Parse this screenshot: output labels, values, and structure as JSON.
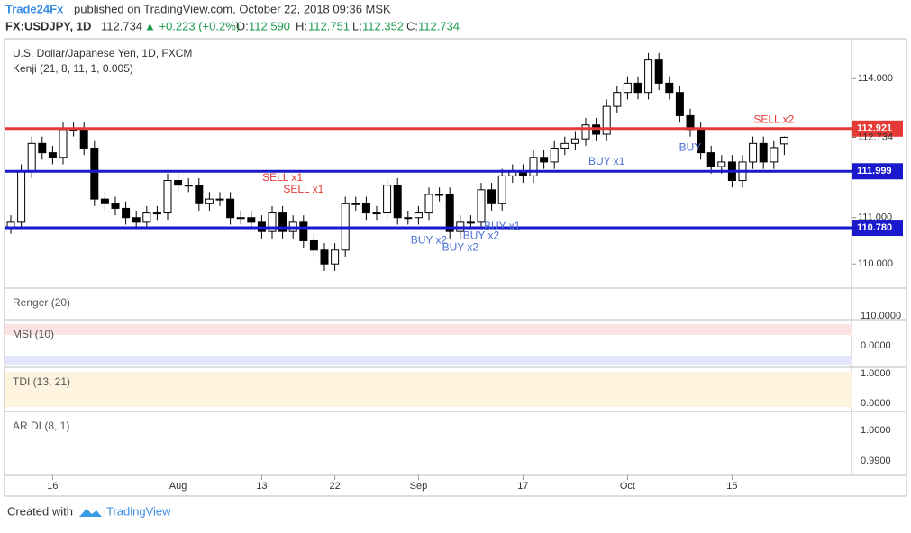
{
  "header": {
    "brand": "Trade24Fx",
    "published": "published on TradingView.com, October 22, 2018 09:36 MSK",
    "symbol": "FX:USDJPY, 1D",
    "last": "112.734",
    "change": "▲ +0.223 (+0.2%)",
    "o_label": "O:",
    "o": "112.590",
    "h_label": "H:",
    "h": "112.751",
    "l_label": "L:",
    "l": "112.352",
    "c_label": "C:",
    "c": "112.734"
  },
  "legend": {
    "instrument": "U.S. Dollar/Japanese Yen, 1D, FXCM",
    "study": "Kenji (21, 8, 11, 1, 0.005)"
  },
  "chart_data": {
    "type": "candlestick",
    "categories": [
      null,
      null,
      null,
      null,
      "16",
      null,
      null,
      null,
      null,
      null,
      null,
      null,
      null,
      null,
      null,
      null,
      "Aug",
      null,
      null,
      null,
      null,
      null,
      null,
      null,
      "13",
      null,
      null,
      null,
      null,
      null,
      null,
      "22",
      null,
      null,
      null,
      null,
      null,
      null,
      null,
      "Sep",
      null,
      null,
      null,
      null,
      null,
      null,
      null,
      null,
      null,
      "17",
      null,
      null,
      null,
      null,
      null,
      null,
      null,
      null,
      null,
      "Oct",
      null,
      null,
      null,
      null,
      null,
      null,
      null,
      null,
      null,
      "15",
      null,
      null,
      null,
      null,
      null
    ],
    "ohlc": [
      [
        110.8,
        111.05,
        110.65,
        110.9
      ],
      [
        110.9,
        112.15,
        110.75,
        112.0
      ],
      [
        112.0,
        112.75,
        111.85,
        112.6
      ],
      [
        112.6,
        112.75,
        112.25,
        112.4
      ],
      [
        112.4,
        112.55,
        112.15,
        112.3
      ],
      [
        112.3,
        113.05,
        112.15,
        112.9
      ],
      [
        112.9,
        113.05,
        112.75,
        112.9
      ],
      [
        112.9,
        113.05,
        112.35,
        112.5
      ],
      [
        112.5,
        112.65,
        111.25,
        111.4
      ],
      [
        111.4,
        111.55,
        111.15,
        111.3
      ],
      [
        111.3,
        111.45,
        111.05,
        111.2
      ],
      [
        111.2,
        111.35,
        110.85,
        111.0
      ],
      [
        111.0,
        111.15,
        110.75,
        110.9
      ],
      [
        110.9,
        111.25,
        110.75,
        111.1
      ],
      [
        111.1,
        111.25,
        110.95,
        111.1
      ],
      [
        111.1,
        111.95,
        110.95,
        111.8
      ],
      [
        111.8,
        111.95,
        111.55,
        111.7
      ],
      [
        111.7,
        111.85,
        111.55,
        111.7
      ],
      [
        111.7,
        111.85,
        111.15,
        111.3
      ],
      [
        111.3,
        111.55,
        111.15,
        111.4
      ],
      [
        111.4,
        111.55,
        111.25,
        111.4
      ],
      [
        111.4,
        111.55,
        110.85,
        111.0
      ],
      [
        111.0,
        111.15,
        110.85,
        111.0
      ],
      [
        111.0,
        111.15,
        110.75,
        110.9
      ],
      [
        110.9,
        111.05,
        110.55,
        110.7
      ],
      [
        110.7,
        111.25,
        110.55,
        111.1
      ],
      [
        111.1,
        111.25,
        110.55,
        110.7
      ],
      [
        110.7,
        111.05,
        110.55,
        110.9
      ],
      [
        110.9,
        111.05,
        110.35,
        110.5
      ],
      [
        110.5,
        110.65,
        110.15,
        110.3
      ],
      [
        110.3,
        110.45,
        109.85,
        110.0
      ],
      [
        110.0,
        110.45,
        109.85,
        110.3
      ],
      [
        110.3,
        111.45,
        110.15,
        111.3
      ],
      [
        111.3,
        111.45,
        111.15,
        111.3
      ],
      [
        111.3,
        111.45,
        110.95,
        111.1
      ],
      [
        111.1,
        111.25,
        110.95,
        111.1
      ],
      [
        111.1,
        111.85,
        110.95,
        111.7
      ],
      [
        111.7,
        111.85,
        110.85,
        111.0
      ],
      [
        111.0,
        111.15,
        110.85,
        111.0
      ],
      [
        111.0,
        111.25,
        110.85,
        111.1
      ],
      [
        111.1,
        111.65,
        110.95,
        111.5
      ],
      [
        111.5,
        111.65,
        111.35,
        111.5
      ],
      [
        111.5,
        111.65,
        110.55,
        110.7
      ],
      [
        110.7,
        111.05,
        110.55,
        110.9
      ],
      [
        110.9,
        111.05,
        110.75,
        110.9
      ],
      [
        110.9,
        111.75,
        110.75,
        111.6
      ],
      [
        111.6,
        111.75,
        111.15,
        111.3
      ],
      [
        111.3,
        112.05,
        111.15,
        111.9
      ],
      [
        111.9,
        112.15,
        111.75,
        112.0
      ],
      [
        112.0,
        112.15,
        111.75,
        111.9
      ],
      [
        111.9,
        112.45,
        111.75,
        112.3
      ],
      [
        112.3,
        112.45,
        112.05,
        112.2
      ],
      [
        112.2,
        112.65,
        112.05,
        112.5
      ],
      [
        112.5,
        112.75,
        112.35,
        112.6
      ],
      [
        112.6,
        112.85,
        112.45,
        112.7
      ],
      [
        112.7,
        113.15,
        112.55,
        113.0
      ],
      [
        113.0,
        113.15,
        112.65,
        112.8
      ],
      [
        112.8,
        113.55,
        112.65,
        113.4
      ],
      [
        113.4,
        113.85,
        113.25,
        113.7
      ],
      [
        113.7,
        114.05,
        113.55,
        113.9
      ],
      [
        113.9,
        114.05,
        113.55,
        113.7
      ],
      [
        113.7,
        114.55,
        113.55,
        114.4
      ],
      [
        114.4,
        114.55,
        113.75,
        113.9
      ],
      [
        113.9,
        114.05,
        113.55,
        113.7
      ],
      [
        113.7,
        113.85,
        113.05,
        113.2
      ],
      [
        113.2,
        113.35,
        112.75,
        112.9
      ],
      [
        112.9,
        113.05,
        112.25,
        112.4
      ],
      [
        112.4,
        112.55,
        111.95,
        112.1
      ],
      [
        112.1,
        112.35,
        111.95,
        112.2
      ],
      [
        112.2,
        112.35,
        111.65,
        111.8
      ],
      [
        111.8,
        112.35,
        111.65,
        112.2
      ],
      [
        112.2,
        112.75,
        112.05,
        112.6
      ],
      [
        112.6,
        112.75,
        112.05,
        112.2
      ],
      [
        112.2,
        112.65,
        112.05,
        112.511
      ],
      [
        112.59,
        112.751,
        112.352,
        112.734
      ]
    ],
    "up_color": "#ffffff",
    "down_color": "#000000",
    "ylim": [
      109.48,
      114.82
    ],
    "yticks": [
      {
        "value": 110,
        "label": "110.000"
      },
      {
        "value": 111,
        "label": "111.000"
      },
      {
        "value": 114,
        "label": "114.000"
      }
    ],
    "levels": [
      {
        "value": 112.921,
        "color": "#e53935"
      },
      {
        "value": 111.999,
        "color": "#1a1acc"
      },
      {
        "value": 110.78,
        "label": "110.780",
        "color": "#1a1acc"
      }
    ],
    "last_price": 112.734,
    "annotations": [
      "SELL x1",
      "SELL x1",
      "SELL x2",
      "BUY x2",
      "BUY x2",
      "BUY x2",
      "BUY x1",
      "BUY x1",
      "BUY"
    ]
  },
  "panes": [
    {
      "name": "Renger (20)",
      "ticks": [
        "110.0000"
      ]
    },
    {
      "name": "MSI (10)",
      "ticks": [
        "0.0000"
      ]
    },
    {
      "name": "TDI (13, 21)",
      "ticks": [
        "1.0000",
        "0.0000"
      ]
    },
    {
      "name": "AR DI (8, 1)",
      "ticks": [
        "1.0000",
        "0.9900"
      ]
    }
  ],
  "footer": {
    "created": "Created with",
    "brand": "TradingView"
  }
}
